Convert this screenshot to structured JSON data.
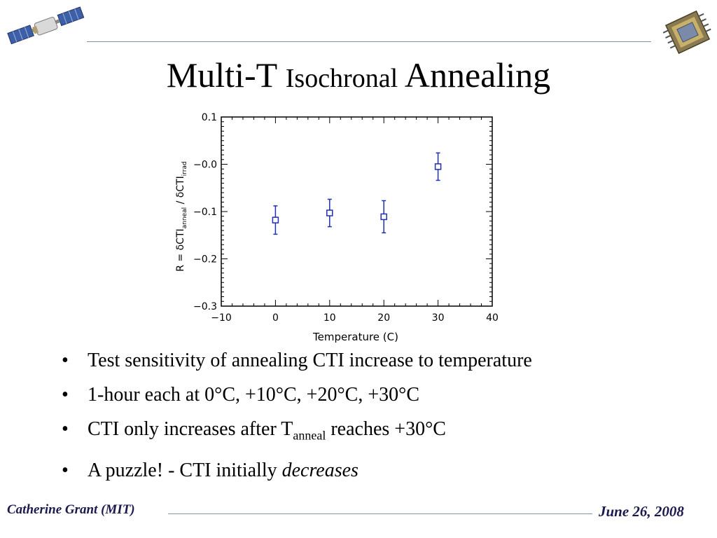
{
  "title": {
    "part1": "Multi-T ",
    "part2": "Isochronal",
    "part3": " Annealing"
  },
  "bullets": [
    {
      "text": "Test sensitivity of annealing CTI increase to temperature"
    },
    {
      "text": "1-hour each at 0°C, +10°C, +20°C, +30°C"
    },
    {
      "pre": "CTI only increases after T",
      "sub": "anneal",
      "post": " reaches +30°C"
    },
    {
      "pre": "A puzzle! - CTI initially ",
      "em": "decreases"
    }
  ],
  "bullet_glyph": "•",
  "footer": {
    "left": "Catherine Grant (MIT)",
    "right": "June 26, 2008"
  },
  "colors": {
    "rule": "#7f93ad",
    "data": "#2030b0",
    "footer": "#1a1a4e"
  },
  "icons": {
    "left_logo": "satellite-icon",
    "right_logo": "ccd-chip-icon"
  },
  "chart_data": {
    "type": "scatter",
    "x": [
      0,
      10,
      20,
      30
    ],
    "y": [
      -0.118,
      -0.103,
      -0.111,
      -0.005
    ],
    "yerr": [
      0.03,
      0.029,
      0.034,
      0.029
    ],
    "xlabel": "Temperature (C)",
    "ylabel": {
      "pre": "R = δCTI",
      "sub1": "anneal",
      "mid": " / δCTI",
      "sub2": "irrad"
    },
    "xlim": [
      -10,
      40
    ],
    "ylim": [
      -0.3,
      0.1
    ],
    "xticks": [
      -10,
      0,
      10,
      20,
      30,
      40
    ],
    "xticklabels": [
      "−10",
      "0",
      "10",
      "20",
      "30",
      "40"
    ],
    "yticks": [
      0.1,
      0.0,
      -0.1,
      -0.2,
      -0.3
    ],
    "yticklabels": [
      "0.1",
      "−0.0",
      "−0.1",
      "−0.2",
      "−0.3"
    ],
    "marker": "open-square",
    "grid": false
  }
}
